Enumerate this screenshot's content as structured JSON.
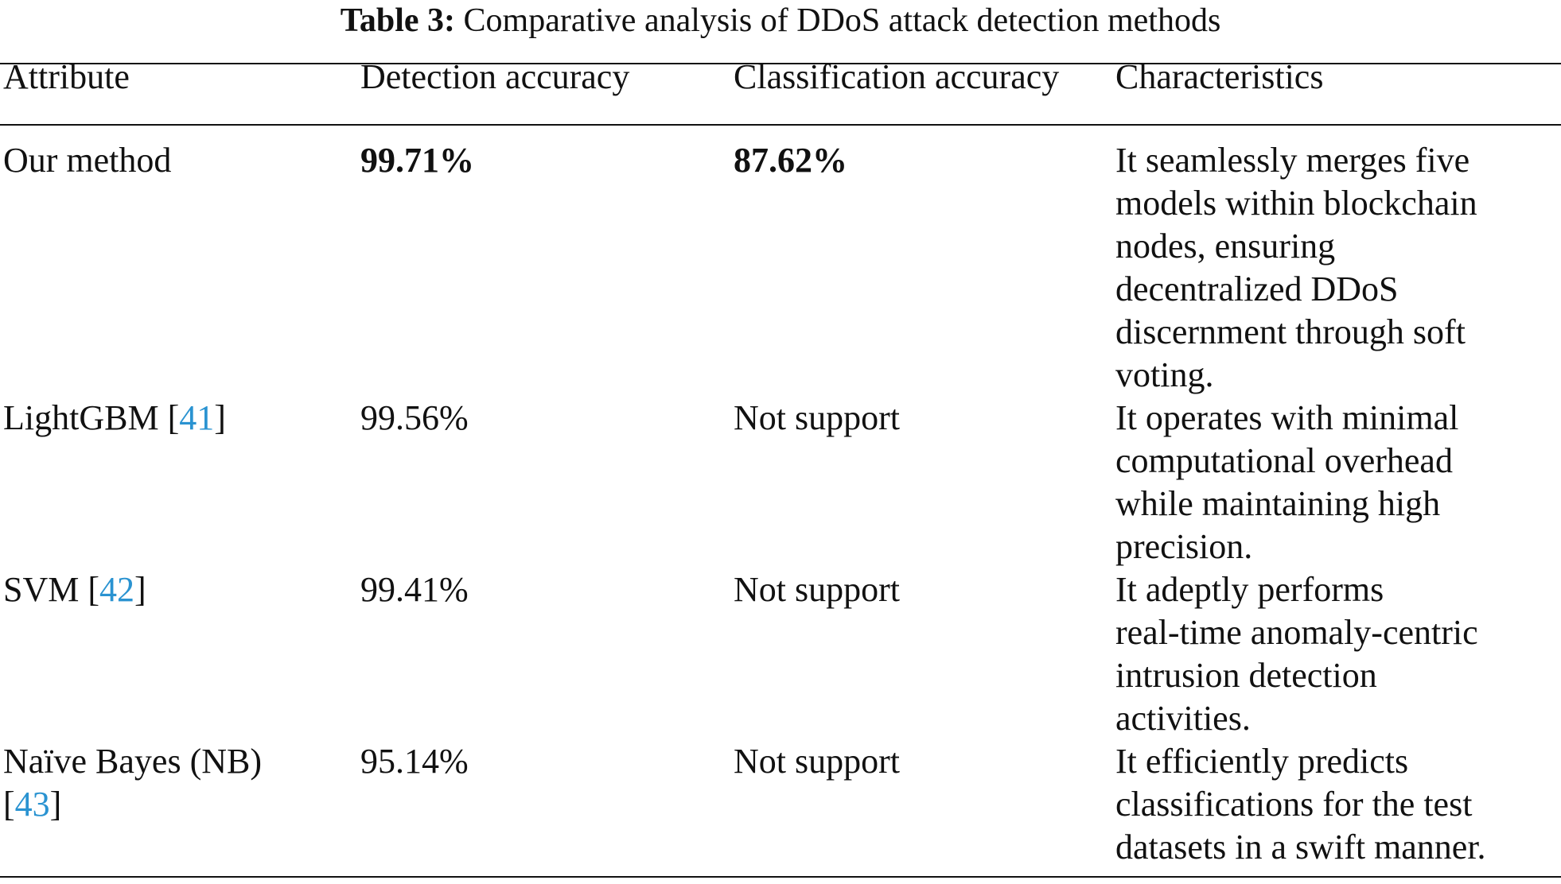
{
  "caption": {
    "label": "Table 3:",
    "text": "Comparative analysis of DDoS attack detection methods"
  },
  "header": {
    "attribute": "Attribute",
    "detection": "Detection accuracy",
    "classification": "Classification accuracy",
    "characteristics": "Characteristics"
  },
  "rows": [
    {
      "attribute": "Our method",
      "detection": "99.71%",
      "classification": "87.62%",
      "characteristics": [
        "It seamlessly merges five",
        "models within blockchain",
        "nodes, ensuring",
        "decentralized DDoS",
        "discernment through soft",
        "voting."
      ]
    },
    {
      "attribute_name": "LightGBM",
      "attribute_open": "[",
      "citation": "41",
      "attribute_close": "]",
      "detection": "99.56%",
      "classification": "Not support",
      "characteristics": [
        "It operates with minimal",
        "computational overhead",
        "while maintaining high",
        "precision."
      ]
    },
    {
      "attribute_name": "SVM",
      "attribute_open": "[",
      "citation": "42",
      "attribute_close": "]",
      "detection": "99.41%",
      "classification": "Not support",
      "characteristics": [
        "It adeptly performs",
        "real-time anomaly-centric",
        "intrusion detection",
        "activities."
      ]
    },
    {
      "attribute_name": "Naïve Bayes (NB)",
      "attribute_open": "[",
      "citation": "43",
      "attribute_close": "]",
      "detection": "95.14%",
      "classification": "Not support",
      "characteristics": [
        "It efficiently predicts",
        "classifications for the test",
        "datasets in a swift manner."
      ]
    }
  ],
  "colors": {
    "citation": "#2a93d1",
    "text": "#111111"
  }
}
